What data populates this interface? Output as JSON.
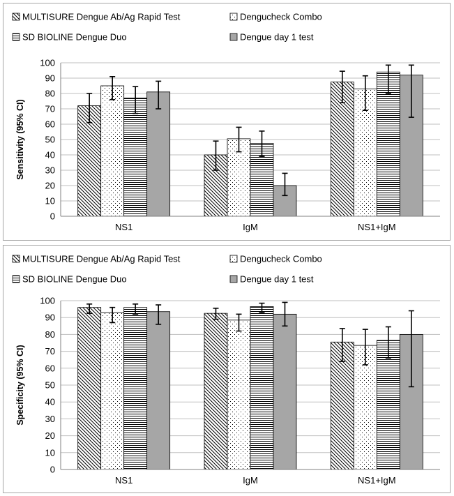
{
  "legend": {
    "series_labels": [
      "MULTISURE Dengue Ab/Ag Rapid Test",
      "Dengucheck Combo",
      "SD BIOLINE Dengue Duo",
      "Dengue day 1 test"
    ]
  },
  "chart_data": [
    {
      "type": "bar",
      "ylabel": "Sensitivity (95% CI)",
      "ylim": [
        0,
        100
      ],
      "yticks": [
        "0",
        "10",
        "20",
        "30",
        "40",
        "50",
        "60",
        "70",
        "80",
        "90",
        "100"
      ],
      "grid": true,
      "legend_position": "top",
      "categories": [
        "NS1",
        "IgM",
        "NS1+IgM"
      ],
      "series": [
        {
          "name": "MULTISURE Dengue Ab/Ag Rapid Test",
          "values": [
            72,
            40,
            87.5
          ],
          "ci_low": [
            61,
            30,
            74
          ],
          "ci_high": [
            80,
            49,
            94.5
          ]
        },
        {
          "name": "Dengucheck Combo",
          "values": [
            85,
            50.5,
            83
          ],
          "ci_low": [
            76,
            42,
            69
          ],
          "ci_high": [
            91,
            58,
            91.5
          ]
        },
        {
          "name": "SD BIOLINE Dengue Duo",
          "values": [
            77,
            47.5,
            94
          ],
          "ci_low": [
            67,
            39,
            80
          ],
          "ci_high": [
            84.5,
            55.5,
            98.5
          ]
        },
        {
          "name": "Dengue day 1 test",
          "values": [
            81,
            20,
            92
          ],
          "ci_low": [
            70,
            13.5,
            64.5
          ],
          "ci_high": [
            88,
            28,
            98.5
          ]
        }
      ]
    },
    {
      "type": "bar",
      "ylabel": "Specificity (95% CI)",
      "ylim": [
        0,
        100
      ],
      "yticks": [
        "0",
        "10",
        "20",
        "30",
        "40",
        "50",
        "60",
        "70",
        "80",
        "90",
        "100"
      ],
      "grid": true,
      "legend_position": "top",
      "categories": [
        "NS1",
        "IgM",
        "NS1+IgM"
      ],
      "series": [
        {
          "name": "MULTISURE Dengue Ab/Ag Rapid Test",
          "values": [
            96,
            92.5,
            75.5
          ],
          "ci_low": [
            92.5,
            89,
            64
          ],
          "ci_high": [
            98,
            95.5,
            83.5
          ]
        },
        {
          "name": "Dengucheck Combo",
          "values": [
            93,
            88.5,
            73.5
          ],
          "ci_low": [
            87,
            82,
            62
          ],
          "ci_high": [
            96,
            92,
            83
          ]
        },
        {
          "name": "SD BIOLINE Dengue Duo",
          "values": [
            96,
            96.5,
            76.5
          ],
          "ci_low": [
            92,
            93,
            66
          ],
          "ci_high": [
            98,
            98.5,
            84.5
          ]
        },
        {
          "name": "Dengue day 1 test",
          "values": [
            93.5,
            92,
            80
          ],
          "ci_low": [
            86,
            85,
            49
          ],
          "ci_high": [
            97.5,
            99,
            94
          ]
        }
      ]
    }
  ]
}
